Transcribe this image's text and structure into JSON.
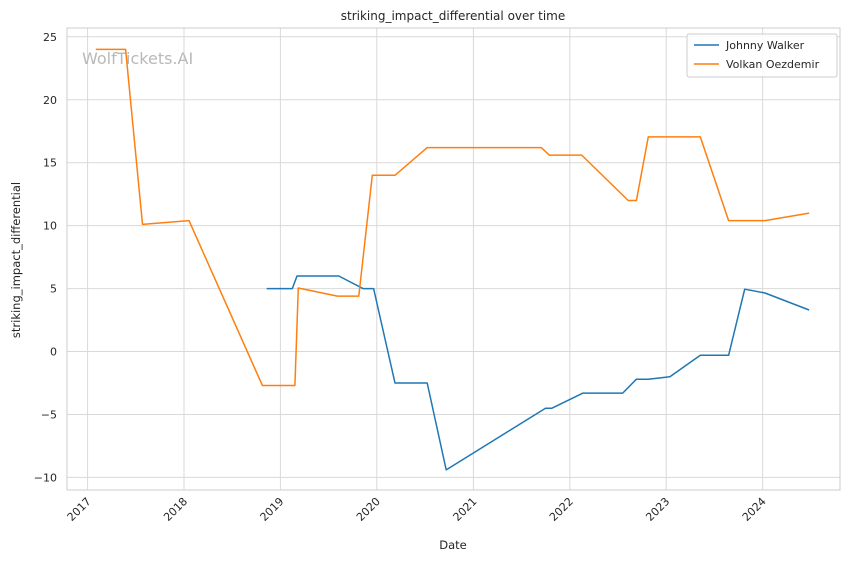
{
  "chart_data": {
    "type": "line",
    "title": "striking_impact_differential over time",
    "xlabel": "Date",
    "ylabel": "striking_impact_differential",
    "watermark": "WolfTickets.AI",
    "xlim": [
      "2016-10-15",
      "2024-10-20"
    ],
    "ylim": [
      -11,
      25.7
    ],
    "x_ticks": [
      "2017",
      "2018",
      "2019",
      "2020",
      "2021",
      "2022",
      "2023",
      "2024"
    ],
    "y_ticks": [
      25,
      20,
      15,
      10,
      5,
      0,
      -5,
      -10
    ],
    "grid": true,
    "legend_position": "top-right",
    "series": [
      {
        "name": "Johnny Walker",
        "color": "#1f77b4",
        "points": [
          [
            "2018-11-10",
            5.0
          ],
          [
            "2019-02-15",
            5.0
          ],
          [
            "2019-03-05",
            6.0
          ],
          [
            "2019-08-10",
            6.0
          ],
          [
            "2019-11-10",
            5.0
          ],
          [
            "2019-12-20",
            5.0
          ],
          [
            "2020-03-10",
            -2.5
          ],
          [
            "2020-07-10",
            -2.5
          ],
          [
            "2020-09-20",
            -9.4
          ],
          [
            "2021-10-01",
            -4.5
          ],
          [
            "2021-10-25",
            -4.5
          ],
          [
            "2022-02-20",
            -3.3
          ],
          [
            "2022-07-20",
            -3.3
          ],
          [
            "2022-09-10",
            -2.2
          ],
          [
            "2022-10-25",
            -2.2
          ],
          [
            "2023-01-15",
            -2.0
          ],
          [
            "2023-05-10",
            -0.3
          ],
          [
            "2023-08-25",
            -0.3
          ],
          [
            "2023-10-25",
            4.95
          ],
          [
            "2024-01-10",
            4.65
          ],
          [
            "2024-06-25",
            3.3
          ]
        ]
      },
      {
        "name": "Volkan Oezdemir",
        "color": "#ff7f0e",
        "points": [
          [
            "2017-02-01",
            24.0
          ],
          [
            "2017-05-25",
            24.0
          ],
          [
            "2017-07-28",
            10.1
          ],
          [
            "2018-01-20",
            10.4
          ],
          [
            "2018-10-25",
            -2.7
          ],
          [
            "2019-02-25",
            -2.7
          ],
          [
            "2019-03-10",
            5.05
          ],
          [
            "2019-08-05",
            4.4
          ],
          [
            "2019-10-25",
            4.4
          ],
          [
            "2019-12-15",
            14.0
          ],
          [
            "2020-03-10",
            14.0
          ],
          [
            "2020-07-10",
            16.2
          ],
          [
            "2021-09-15",
            16.2
          ],
          [
            "2021-10-15",
            15.6
          ],
          [
            "2022-02-15",
            15.6
          ],
          [
            "2022-08-10",
            12.0
          ],
          [
            "2022-09-10",
            12.0
          ],
          [
            "2022-10-25",
            17.05
          ],
          [
            "2023-05-10",
            17.05
          ],
          [
            "2023-08-25",
            10.4
          ],
          [
            "2024-01-10",
            10.4
          ],
          [
            "2024-06-25",
            11.0
          ]
        ]
      }
    ]
  }
}
